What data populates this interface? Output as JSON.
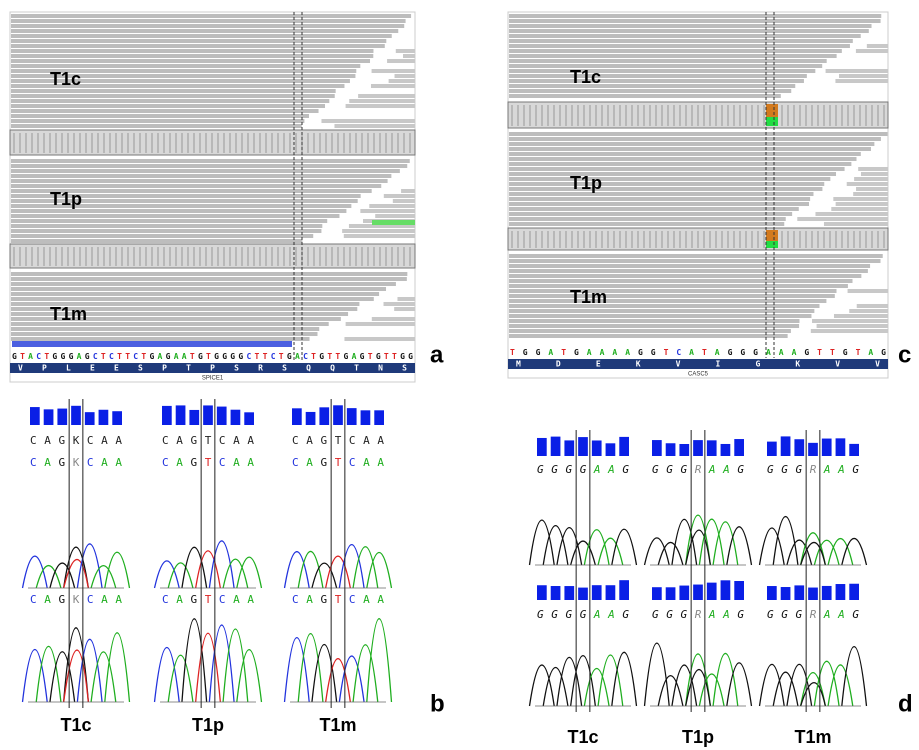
{
  "panels": {
    "a": {
      "label": "a",
      "samples": [
        "T1c",
        "T1p",
        "T1m"
      ],
      "reference": "GTACTGGGAGCTCTTCTGAGAATGTGGGGCTTCTGACTGTTGAGTGTTGG",
      "amino_acids": "VPLEESPTPSRSQQTNS",
      "gene": "SPICE1"
    },
    "b": {
      "label": "b",
      "traces": [
        {
          "sample": "T1c",
          "calls": [
            "CAGKCAA",
            "CAGKCAA",
            "CAGKCAA"
          ]
        },
        {
          "sample": "T1p",
          "calls": [
            "CAGTCAA",
            "CAGTCAA",
            "CAGTCAA"
          ]
        },
        {
          "sample": "T1m",
          "calls": [
            "CAGTCAA",
            "CAGTCAA",
            "CAGTCAA"
          ]
        }
      ]
    },
    "c": {
      "label": "c",
      "samples": [
        "T1c",
        "T1p",
        "T1m"
      ],
      "reference": "TGGATGAAAAGGTCATAGGGAAAGTTGTAG",
      "amino_acids": "MDEKVIGKVV",
      "gene": "CASC5"
    },
    "d": {
      "label": "d",
      "traces": [
        {
          "sample": "T1c",
          "calls": [
            "GGGGAAG",
            "GGGGAAG"
          ]
        },
        {
          "sample": "T1p",
          "calls": [
            "GGGRAAG",
            "GGGRAAG"
          ]
        },
        {
          "sample": "T1m",
          "calls": [
            "GGGRAAG",
            "GGGRAAG"
          ]
        }
      ]
    }
  }
}
